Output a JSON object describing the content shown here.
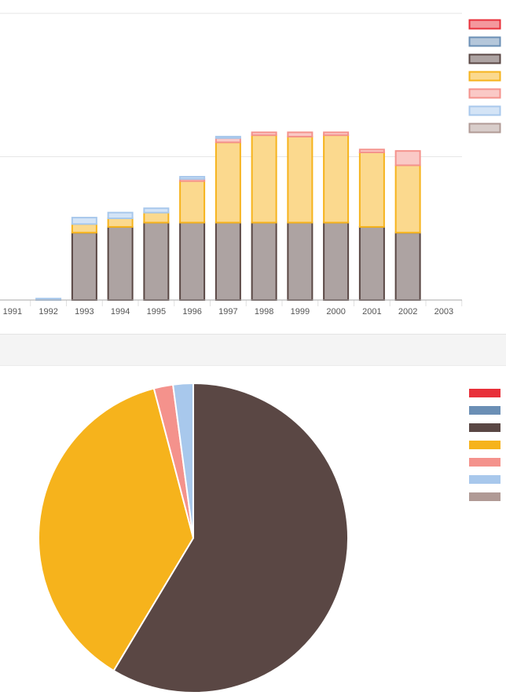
{
  "colors": {
    "series": [
      "#e8303a",
      "#6b8fb5",
      "#5a4744",
      "#f6b31c",
      "#f4928c",
      "#a8c8ec",
      "#b09a95"
    ],
    "band": "#f4f4f4"
  },
  "chart_data": [
    {
      "type": "bar",
      "stacked": true,
      "categories": [
        "1991",
        "1992",
        "1993",
        "1994",
        "1995",
        "1996",
        "1997",
        "1998",
        "1999",
        "2000",
        "2001",
        "2002",
        "2003"
      ],
      "series": [
        {
          "color": "#5a4744",
          "values": [
            0,
            0,
            0.47,
            0.51,
            0.54,
            0.54,
            0.54,
            0.54,
            0.54,
            0.54,
            0.51,
            0.47,
            0
          ]
        },
        {
          "color": "#f6b31c",
          "values": [
            0,
            0,
            0.06,
            0.06,
            0.07,
            0.29,
            0.56,
            0.61,
            0.6,
            0.61,
            0.52,
            0.47,
            0
          ]
        },
        {
          "color": "#f4928c",
          "values": [
            0,
            0,
            0,
            0,
            0,
            0.015,
            0.03,
            0.02,
            0.03,
            0.02,
            0.02,
            0.1,
            0
          ]
        },
        {
          "color": "#a8c8ec",
          "values": [
            0,
            0.01,
            0.045,
            0.04,
            0.03,
            0.015,
            0.01,
            0,
            0,
            0,
            0,
            0,
            0
          ]
        }
      ],
      "ylim": [
        0,
        2
      ],
      "grid": true,
      "legend": "right",
      "legend_colors": [
        "#e8303a",
        "#6b8fb5",
        "#5a4744",
        "#f6b31c",
        "#f4928c",
        "#a8c8ec",
        "#b09a95"
      ]
    },
    {
      "type": "pie",
      "slices": [
        {
          "color": "#5a4744",
          "value": 58.6
        },
        {
          "color": "#f6b31c",
          "value": 37.3
        },
        {
          "color": "#f4928c",
          "value": 2.0
        },
        {
          "color": "#a8c8ec",
          "value": 2.1
        }
      ],
      "legend": "right",
      "legend_colors": [
        "#e8303a",
        "#6b8fb5",
        "#5a4744",
        "#f6b31c",
        "#f4928c",
        "#a8c8ec",
        "#b09a95"
      ]
    }
  ]
}
